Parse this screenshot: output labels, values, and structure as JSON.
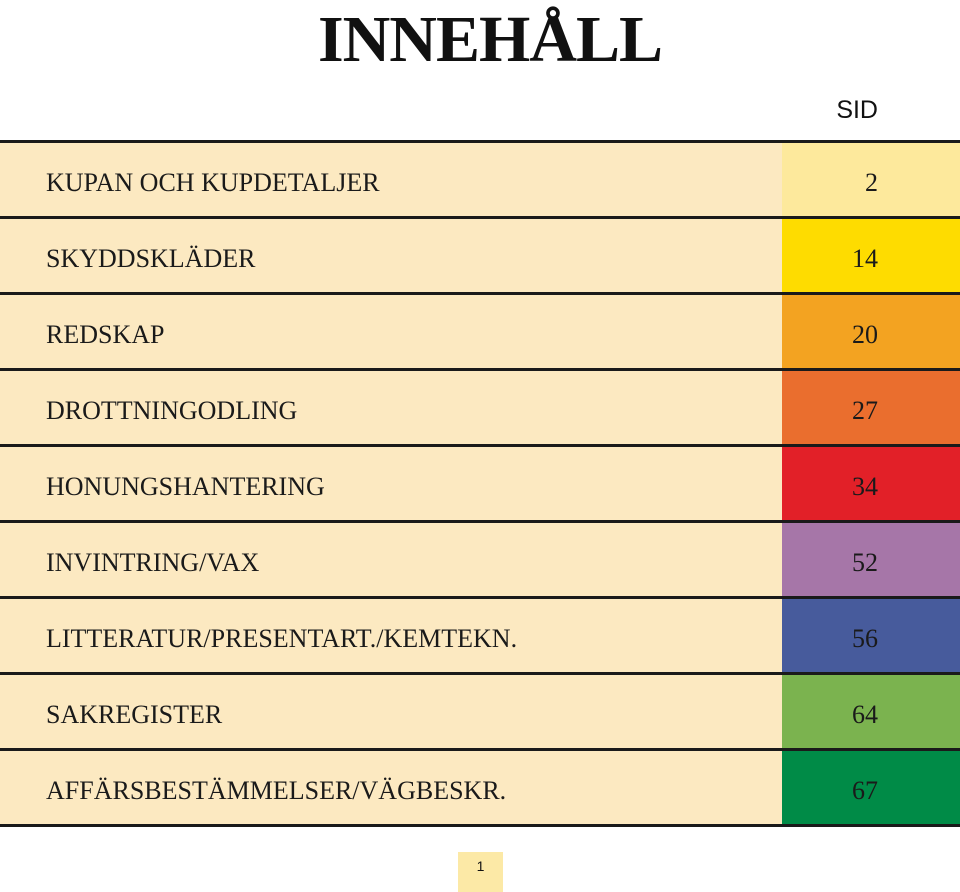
{
  "page": {
    "title": "INNEHÅLL",
    "page_column_header": "SID",
    "footer_page_number": "1"
  },
  "toc": {
    "entries": [
      {
        "label": "KUPAN OCH KUPDETALJER",
        "page": "2",
        "tab_color": "#fde99c"
      },
      {
        "label": "SKYDDSKLÄDER",
        "page": "14",
        "tab_color": "#fedc00"
      },
      {
        "label": "REDSKAP",
        "page": "20",
        "tab_color": "#f3a321"
      },
      {
        "label": "DROTTNINGODLING",
        "page": "27",
        "tab_color": "#ea6e2e"
      },
      {
        "label": "HONUNGSHANTERING",
        "page": "34",
        "tab_color": "#e22028"
      },
      {
        "label": "INVINTRING/VAX",
        "page": "52",
        "tab_color": "#a676a8"
      },
      {
        "label": "LITTERATUR/PRESENTART./KEMTEKN.",
        "page": "56",
        "tab_color": "#475b9c"
      },
      {
        "label": "SAKREGISTER",
        "page": "64",
        "tab_color": "#7bb34f"
      },
      {
        "label": "AFFÄRSBESTÄMMELSER/VÄGBESKR.",
        "page": "67",
        "tab_color": "#008b47"
      }
    ]
  }
}
